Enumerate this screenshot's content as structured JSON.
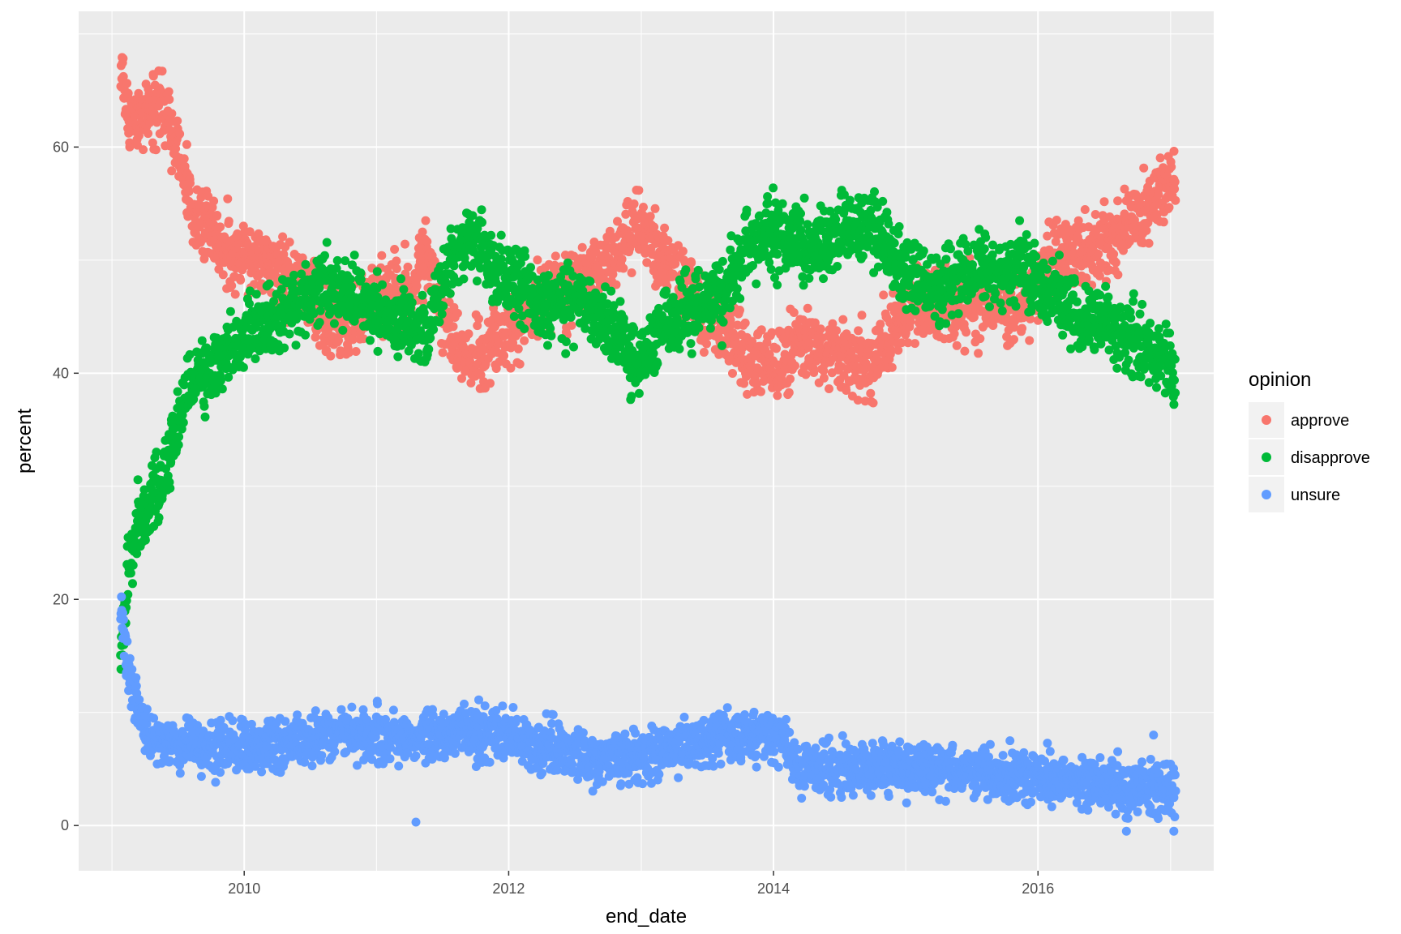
{
  "chart_data": {
    "type": "scatter",
    "title": "",
    "xlabel": "end_date",
    "ylabel": "percent",
    "xlim": [
      "2008-10-01",
      "2017-04-30"
    ],
    "ylim": [
      -4,
      72
    ],
    "x_ticks": [
      "2010-01-01",
      "2012-01-01",
      "2014-01-01",
      "2016-01-01"
    ],
    "x_tick_labels": [
      "2010",
      "2012",
      "2014",
      "2016"
    ],
    "y_ticks": [
      0,
      20,
      40,
      60
    ],
    "y_tick_labels": [
      "0",
      "20",
      "40",
      "60"
    ],
    "grid": true,
    "legend": {
      "title": "opinion",
      "placement": "right"
    },
    "series": [
      {
        "name": "approve",
        "color": "#F8766D",
        "points": [
          [
            "2009-01-25",
            67
          ],
          [
            "2009-02-15",
            63
          ],
          [
            "2009-03-15",
            62
          ],
          [
            "2009-04-15",
            63
          ],
          [
            "2009-05-15",
            64
          ],
          [
            "2009-06-15",
            61
          ],
          [
            "2009-07-15",
            58
          ],
          [
            "2009-08-15",
            54
          ],
          [
            "2009-09-15",
            53
          ],
          [
            "2009-10-15",
            52
          ],
          [
            "2009-11-15",
            51
          ],
          [
            "2009-12-15",
            50
          ],
          [
            "2010-02-01",
            50
          ],
          [
            "2010-04-01",
            49
          ],
          [
            "2010-06-01",
            48
          ],
          [
            "2010-08-01",
            45
          ],
          [
            "2010-10-01",
            44
          ],
          [
            "2010-12-01",
            46
          ],
          [
            "2011-02-01",
            47
          ],
          [
            "2011-04-01",
            47
          ],
          [
            "2011-05-20",
            51
          ],
          [
            "2011-07-01",
            46
          ],
          [
            "2011-08-15",
            42
          ],
          [
            "2011-10-01",
            41
          ],
          [
            "2011-12-01",
            43
          ],
          [
            "2012-02-01",
            45
          ],
          [
            "2012-04-01",
            47
          ],
          [
            "2012-06-01",
            47
          ],
          [
            "2012-08-01",
            48
          ],
          [
            "2012-10-01",
            50
          ],
          [
            "2012-12-15",
            53
          ],
          [
            "2013-02-15",
            51
          ],
          [
            "2013-04-15",
            48
          ],
          [
            "2013-06-15",
            46
          ],
          [
            "2013-08-15",
            44
          ],
          [
            "2013-10-15",
            42
          ],
          [
            "2013-12-01",
            41
          ],
          [
            "2014-02-01",
            41
          ],
          [
            "2014-04-01",
            43
          ],
          [
            "2014-06-01",
            42
          ],
          [
            "2014-08-01",
            41
          ],
          [
            "2014-10-01",
            41
          ],
          [
            "2014-12-01",
            44
          ],
          [
            "2015-02-01",
            46
          ],
          [
            "2015-04-01",
            46
          ],
          [
            "2015-06-01",
            46
          ],
          [
            "2015-08-01",
            46
          ],
          [
            "2015-10-01",
            46
          ],
          [
            "2015-12-01",
            46
          ],
          [
            "2016-02-01",
            50
          ],
          [
            "2016-04-01",
            51
          ],
          [
            "2016-06-01",
            51
          ],
          [
            "2016-08-01",
            52
          ],
          [
            "2016-10-01",
            54
          ],
          [
            "2016-12-01",
            56
          ],
          [
            "2017-01-15",
            57
          ]
        ]
      },
      {
        "name": "disapprove",
        "color": "#00BA38",
        "points": [
          [
            "2009-01-25",
            14
          ],
          [
            "2009-02-05",
            20
          ],
          [
            "2009-02-20",
            24
          ],
          [
            "2009-03-15",
            27
          ],
          [
            "2009-04-15",
            29
          ],
          [
            "2009-05-15",
            30
          ],
          [
            "2009-06-15",
            33
          ],
          [
            "2009-07-15",
            37
          ],
          [
            "2009-08-15",
            40
          ],
          [
            "2009-09-15",
            40
          ],
          [
            "2009-10-15",
            41
          ],
          [
            "2009-12-15",
            43
          ],
          [
            "2010-02-01",
            44
          ],
          [
            "2010-04-01",
            45
          ],
          [
            "2010-06-01",
            46
          ],
          [
            "2010-08-01",
            48
          ],
          [
            "2010-10-01",
            47
          ],
          [
            "2010-12-01",
            46
          ],
          [
            "2011-02-01",
            45
          ],
          [
            "2011-04-01",
            45
          ],
          [
            "2011-05-20",
            43
          ],
          [
            "2011-07-01",
            48
          ],
          [
            "2011-08-15",
            51
          ],
          [
            "2011-10-01",
            52
          ],
          [
            "2011-12-01",
            49
          ],
          [
            "2012-02-01",
            48
          ],
          [
            "2012-04-01",
            46
          ],
          [
            "2012-06-01",
            46
          ],
          [
            "2012-08-01",
            46
          ],
          [
            "2012-10-01",
            44
          ],
          [
            "2012-12-15",
            41
          ],
          [
            "2013-02-15",
            43
          ],
          [
            "2013-04-15",
            45
          ],
          [
            "2013-06-15",
            46
          ],
          [
            "2013-08-15",
            47
          ],
          [
            "2013-10-15",
            51
          ],
          [
            "2013-12-01",
            52
          ],
          [
            "2014-02-01",
            52
          ],
          [
            "2014-04-01",
            51
          ],
          [
            "2014-06-01",
            52
          ],
          [
            "2014-08-01",
            53
          ],
          [
            "2014-10-01",
            53
          ],
          [
            "2014-12-01",
            50
          ],
          [
            "2015-02-01",
            48
          ],
          [
            "2015-04-01",
            48
          ],
          [
            "2015-06-01",
            49
          ],
          [
            "2015-08-01",
            49
          ],
          [
            "2015-10-01",
            49
          ],
          [
            "2015-12-01",
            49
          ],
          [
            "2016-02-01",
            47
          ],
          [
            "2016-04-01",
            45
          ],
          [
            "2016-06-01",
            45
          ],
          [
            "2016-08-01",
            44
          ],
          [
            "2016-10-01",
            43
          ],
          [
            "2016-12-01",
            41
          ],
          [
            "2017-01-15",
            40
          ]
        ]
      },
      {
        "name": "unsure",
        "color": "#619CFF",
        "points": [
          [
            "2009-01-25",
            19
          ],
          [
            "2009-02-10",
            15
          ],
          [
            "2009-03-01",
            12
          ],
          [
            "2009-03-20",
            10
          ],
          [
            "2009-04-15",
            8
          ],
          [
            "2009-06-15",
            7
          ],
          [
            "2009-09-15",
            7
          ],
          [
            "2009-12-15",
            7
          ],
          [
            "2010-04-01",
            7
          ],
          [
            "2010-08-01",
            8
          ],
          [
            "2010-12-01",
            8
          ],
          [
            "2011-04-01",
            8
          ],
          [
            "2011-08-01",
            8
          ],
          [
            "2011-12-01",
            8
          ],
          [
            "2012-04-01",
            7
          ],
          [
            "2012-08-01",
            6
          ],
          [
            "2012-12-15",
            6
          ],
          [
            "2013-04-15",
            7
          ],
          [
            "2013-08-15",
            8
          ],
          [
            "2013-12-01",
            8
          ],
          [
            "2014-02-01",
            8
          ],
          [
            "2014-03-01",
            5
          ],
          [
            "2014-08-01",
            5
          ],
          [
            "2015-01-01",
            5
          ],
          [
            "2015-06-01",
            5
          ],
          [
            "2015-12-01",
            4
          ],
          [
            "2016-06-01",
            4
          ],
          [
            "2017-01-15",
            3
          ]
        ],
        "outliers": [
          [
            "2011-04-20",
            0.3
          ],
          [
            "2016-09-01",
            -0.5
          ],
          [
            "2017-01-10",
            -0.5
          ],
          [
            "2016-11-15",
            8
          ]
        ]
      }
    ]
  }
}
